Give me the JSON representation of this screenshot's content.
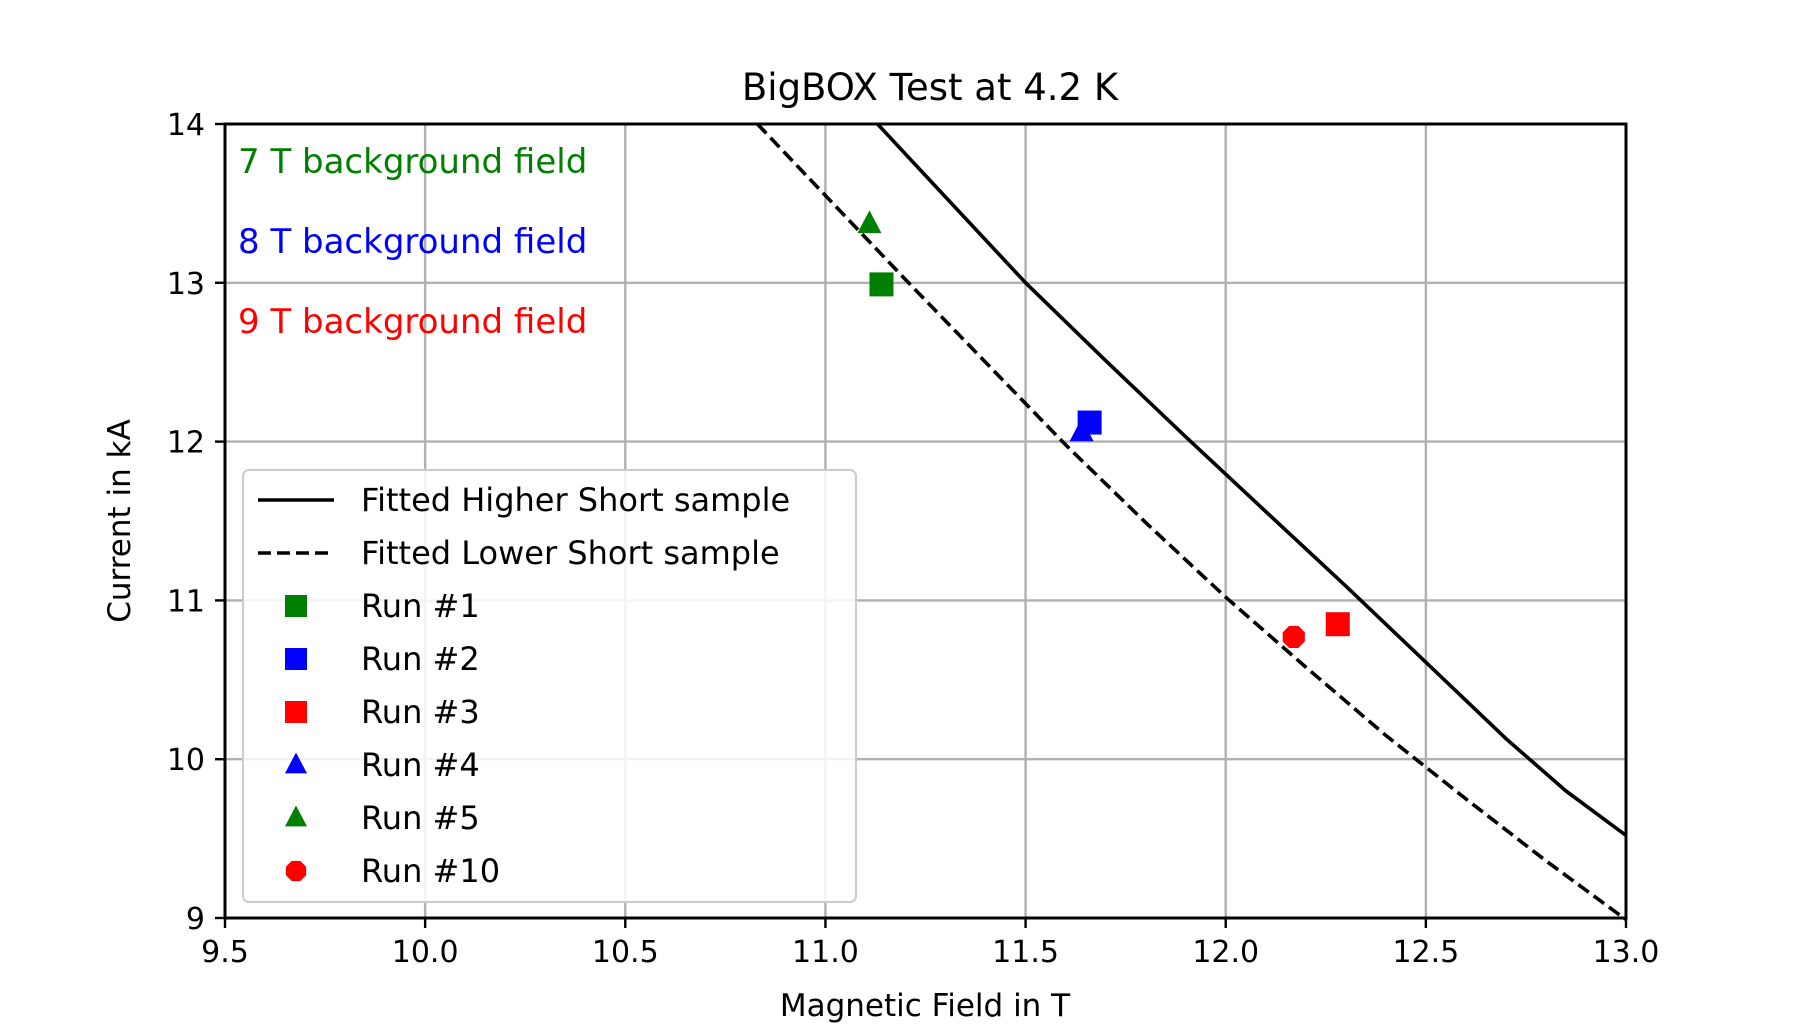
{
  "chart_data": {
    "type": "line",
    "title": "BigBOX Test at 4.2 K",
    "xlabel": "Magnetic Field in T",
    "ylabel": "Current in kA",
    "xlim": [
      9.5,
      13.0
    ],
    "ylim": [
      9,
      14
    ],
    "x_ticks": [
      "9.5",
      "10.0",
      "10.5",
      "11.0",
      "11.5",
      "12.0",
      "12.5",
      "13.0"
    ],
    "y_ticks": [
      "9",
      "10",
      "11",
      "12",
      "13",
      "14"
    ],
    "grid": true,
    "legend_position": "lower-left",
    "annotations": [
      {
        "text": "7 T background field",
        "color": "#008000"
      },
      {
        "text": "8 T background field",
        "color": "#0000ff"
      },
      {
        "text": "9 T background field",
        "color": "#ff0000"
      }
    ],
    "series": [
      {
        "name": "Fitted Higher Short sample",
        "kind": "line",
        "style": "solid",
        "color": "#000000",
        "x": [
          11.13,
          11.3,
          11.5,
          11.7,
          11.9,
          12.1,
          12.3,
          12.5,
          12.7,
          12.85,
          13.0
        ],
        "y": [
          14.0,
          13.54,
          13.0,
          12.51,
          12.03,
          11.56,
          11.09,
          10.61,
          10.13,
          9.8,
          9.52
        ]
      },
      {
        "name": "Fitted Lower Short sample",
        "kind": "line",
        "style": "dashed",
        "color": "#000000",
        "x": [
          10.83,
          11.0,
          11.2,
          11.4,
          11.6,
          11.8,
          12.0,
          12.2,
          12.4,
          12.6,
          12.8,
          13.0
        ],
        "y": [
          14.0,
          13.55,
          13.02,
          12.5,
          11.98,
          11.49,
          11.02,
          10.58,
          10.15,
          9.75,
          9.36,
          8.99
        ]
      },
      {
        "name": "Run #1",
        "kind": "marker",
        "marker": "square",
        "color": "#008000",
        "x": [
          11.14
        ],
        "y": [
          12.99
        ]
      },
      {
        "name": "Run #2",
        "kind": "marker",
        "marker": "square",
        "color": "#0000ff",
        "x": [
          11.66
        ],
        "y": [
          12.12
        ]
      },
      {
        "name": "Run #3",
        "kind": "marker",
        "marker": "square",
        "color": "#ff0000",
        "x": [
          12.28
        ],
        "y": [
          10.85
        ]
      },
      {
        "name": "Run #4",
        "kind": "marker",
        "marker": "triangle",
        "color": "#0000ff",
        "x": [
          11.64
        ],
        "y": [
          12.06
        ]
      },
      {
        "name": "Run #5",
        "kind": "marker",
        "marker": "triangle",
        "color": "#008000",
        "x": [
          11.11
        ],
        "y": [
          13.37
        ]
      },
      {
        "name": "Run #10",
        "kind": "marker",
        "marker": "octagon",
        "color": "#ff0000",
        "x": [
          12.17
        ],
        "y": [
          10.77
        ]
      }
    ]
  }
}
